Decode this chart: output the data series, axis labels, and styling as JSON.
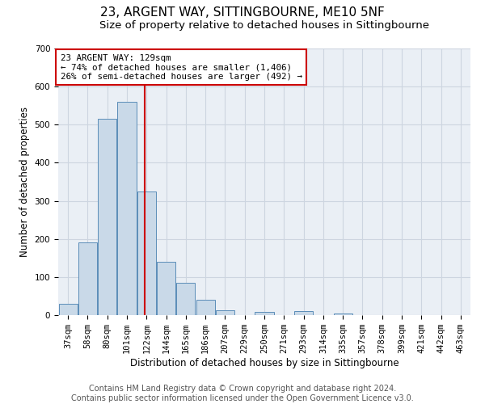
{
  "title": "23, ARGENT WAY, SITTINGBOURNE, ME10 5NF",
  "subtitle": "Size of property relative to detached houses in Sittingbourne",
  "xlabel": "Distribution of detached houses by size in Sittingbourne",
  "ylabel": "Number of detached properties",
  "footer_line1": "Contains HM Land Registry data © Crown copyright and database right 2024.",
  "footer_line2": "Contains public sector information licensed under the Open Government Licence v3.0.",
  "categories": [
    "37sqm",
    "58sqm",
    "80sqm",
    "101sqm",
    "122sqm",
    "144sqm",
    "165sqm",
    "186sqm",
    "207sqm",
    "229sqm",
    "250sqm",
    "271sqm",
    "293sqm",
    "314sqm",
    "335sqm",
    "357sqm",
    "378sqm",
    "399sqm",
    "421sqm",
    "442sqm",
    "463sqm"
  ],
  "values": [
    30,
    190,
    515,
    560,
    325,
    140,
    85,
    40,
    13,
    0,
    8,
    0,
    10,
    0,
    5,
    0,
    0,
    0,
    0,
    0,
    0
  ],
  "bar_color": "#c9d9e8",
  "bar_edge_color": "#5b8db8",
  "vline_pos": 3.9,
  "vline_color": "#cc0000",
  "annotation_text": "23 ARGENT WAY: 129sqm\n← 74% of detached houses are smaller (1,406)\n26% of semi-detached houses are larger (492) →",
  "annotation_box_color": "white",
  "annotation_box_edge_color": "#cc0000",
  "ylim": [
    0,
    700
  ],
  "yticks": [
    0,
    100,
    200,
    300,
    400,
    500,
    600,
    700
  ],
  "grid_color": "#cdd5e0",
  "background_color": "#eaeff5",
  "title_fontsize": 11,
  "subtitle_fontsize": 9.5,
  "axis_fontsize": 8.5,
  "tick_fontsize": 7.5,
  "footer_fontsize": 7,
  "annotation_fontsize": 7.8
}
